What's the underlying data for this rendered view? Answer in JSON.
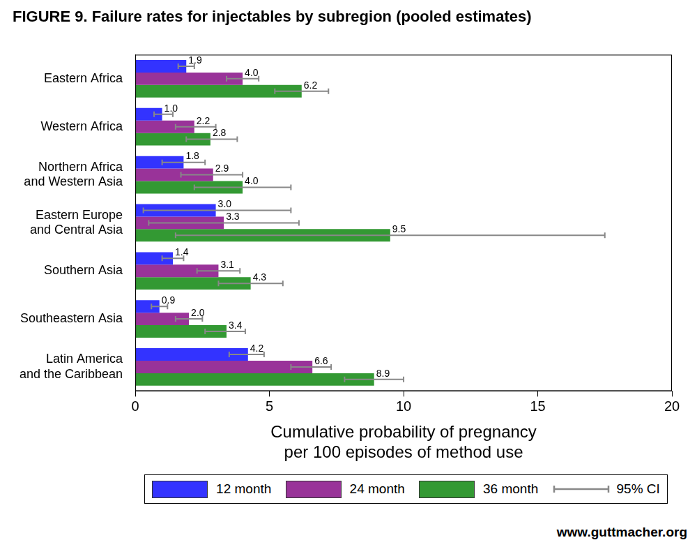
{
  "chart_data": {
    "type": "bar",
    "orientation": "horizontal",
    "title": "FIGURE 9. Failure rates for injectables by subregion (pooled estimates)",
    "x_label": [
      "Cumulative probability of pregnancy",
      "per 100 episodes of method use"
    ],
    "source": "www.guttmacher.org",
    "categories": [
      "Eastern Africa",
      "Western Africa",
      [
        "Northern Africa",
        "and Western Asia"
      ],
      [
        "Eastern Europe",
        "and Central Asia"
      ],
      "Southern Asia",
      "Southeastern Asia",
      [
        "Latin America",
        "and the Caribbean"
      ]
    ],
    "series": [
      {
        "name": "12 month",
        "color": "#3333ff",
        "values": [
          1.9,
          1.0,
          1.8,
          3.0,
          1.4,
          0.9,
          4.2
        ],
        "value_labels": [
          "1.9",
          "1.0",
          "1.8",
          "3.0",
          "1.4",
          "0.9",
          "4.2"
        ],
        "ci_low": [
          1.6,
          0.7,
          1.0,
          0.3,
          1.0,
          0.6,
          3.5
        ],
        "ci_high": [
          2.2,
          1.4,
          2.6,
          5.8,
          1.8,
          1.2,
          4.8
        ]
      },
      {
        "name": "24 month",
        "color": "#993399",
        "values": [
          4.0,
          2.2,
          2.9,
          3.3,
          3.1,
          2.0,
          6.6
        ],
        "value_labels": [
          "4.0",
          "2.2",
          "2.9",
          "3.3",
          "3.1",
          "2.0",
          "6.6"
        ],
        "ci_low": [
          3.4,
          1.5,
          1.7,
          0.5,
          2.3,
          1.5,
          5.8
        ],
        "ci_high": [
          4.6,
          3.0,
          4.0,
          6.1,
          3.9,
          2.5,
          7.3
        ]
      },
      {
        "name": "36 month",
        "color": "#339933",
        "values": [
          6.2,
          2.8,
          4.0,
          9.5,
          4.3,
          3.4,
          8.9
        ],
        "value_labels": [
          "6.2",
          "2.8",
          "4.0",
          "9.5",
          "4.3",
          "3.4",
          "8.9"
        ],
        "ci_low": [
          5.2,
          1.9,
          2.2,
          1.5,
          3.1,
          2.6,
          7.8
        ],
        "ci_high": [
          7.2,
          3.8,
          5.8,
          17.5,
          5.5,
          4.1,
          10.0
        ]
      }
    ],
    "error_bars": {
      "name": "95% CI",
      "color": "#888888"
    },
    "xlim": [
      0,
      20
    ],
    "xticks": [
      0,
      5,
      10,
      15,
      20
    ],
    "grid": false,
    "legend": "bottom",
    "data_labels": true
  }
}
